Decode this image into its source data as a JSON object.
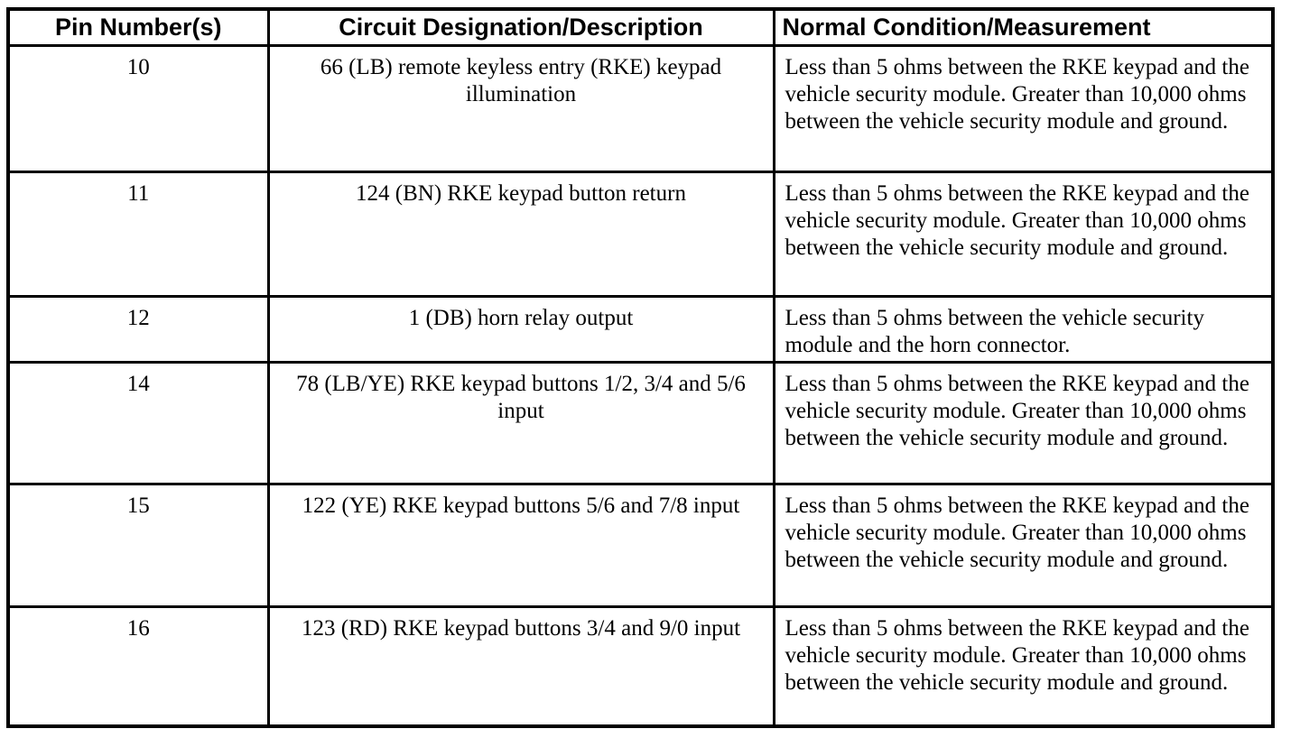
{
  "table": {
    "columns": [
      {
        "label": "Pin Number(s)"
      },
      {
        "label": "Circuit Designation/Description"
      },
      {
        "label": "Normal Condition/Measurement"
      }
    ],
    "rows": [
      {
        "pin": "10",
        "circuit": "66 (LB) remote keyless entry (RKE) keypad illumination",
        "normal": "Less than 5 ohms between the RKE keypad and the vehicle security module. Greater than 10,000 ohms between the vehicle security module and ground."
      },
      {
        "pin": "11",
        "circuit": "124 (BN) RKE keypad button return",
        "normal": "Less than 5 ohms between the RKE keypad and the vehicle security module. Greater than 10,000 ohms between the vehicle security module and ground."
      },
      {
        "pin": "12",
        "circuit": "1 (DB) horn relay output",
        "normal": "Less than 5 ohms between the vehicle security module and the horn connector."
      },
      {
        "pin": "14",
        "circuit": "78 (LB/YE) RKE keypad buttons 1/2, 3/4 and 5/6 input",
        "normal": "Less than 5 ohms between the RKE keypad and the vehicle security module. Greater than 10,000 ohms between the vehicle security module and ground."
      },
      {
        "pin": "15",
        "circuit": "122 (YE) RKE keypad buttons 5/6 and 7/8 input",
        "normal": "Less than 5 ohms between the RKE keypad and the vehicle security module. Greater than 10,000 ohms between the vehicle security module and ground."
      },
      {
        "pin": "16",
        "circuit": "123 (RD) RKE keypad buttons 3/4 and 9/0 input",
        "normal": "Less than 5 ohms between the RKE keypad and the vehicle security module. Greater than 10,000 ohms between the vehicle security module and ground."
      }
    ],
    "border_color": "#000000",
    "background_color": "#ffffff",
    "text_color": "#000000"
  }
}
